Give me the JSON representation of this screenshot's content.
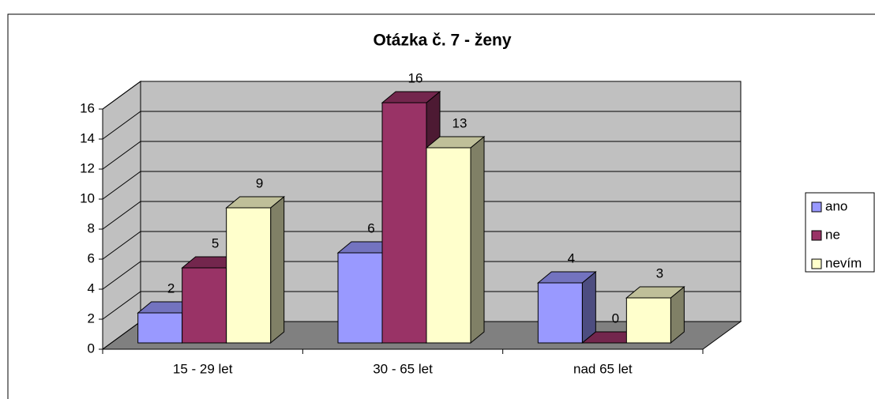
{
  "chart_data": {
    "type": "bar3d",
    "title": "Otázka č. 7 - ženy",
    "categories": [
      "15 - 29 let",
      "30 - 65 let",
      "nad 65 let"
    ],
    "series": [
      {
        "name": "ano",
        "color": "#9999ff",
        "values": [
          2,
          6,
          4
        ]
      },
      {
        "name": "ne",
        "color": "#993366",
        "values": [
          5,
          16,
          0
        ]
      },
      {
        "name": "nevím",
        "color": "#ffffcc",
        "values": [
          9,
          13,
          3
        ]
      }
    ],
    "ylim": [
      0,
      16
    ],
    "yticks": [
      0,
      2,
      4,
      6,
      8,
      10,
      12,
      14,
      16
    ],
    "grid": true,
    "legend": "right"
  }
}
